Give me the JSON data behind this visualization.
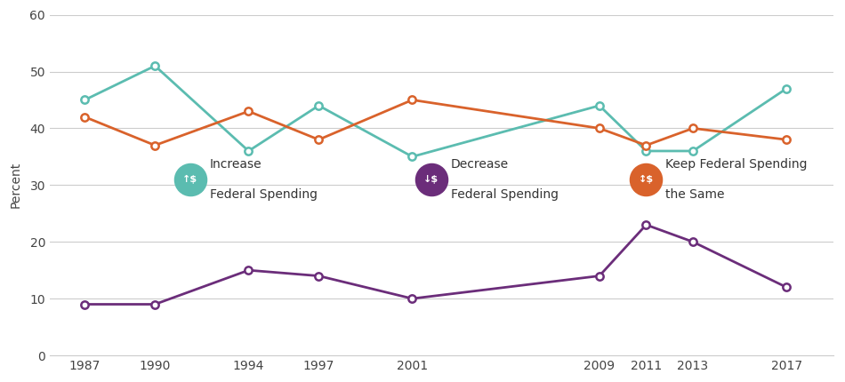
{
  "years": [
    1987,
    1990,
    1994,
    1997,
    2001,
    2009,
    2011,
    2013,
    2017
  ],
  "increase": [
    45,
    51,
    36,
    44,
    35,
    44,
    36,
    36,
    47
  ],
  "keep_same": [
    42,
    37,
    43,
    38,
    45,
    40,
    37,
    40,
    38
  ],
  "decrease": [
    9,
    9,
    15,
    14,
    10,
    14,
    23,
    20,
    12
  ],
  "increase_color": "#5bbcb0",
  "keep_same_color": "#d9622b",
  "decrease_color": "#6b2d7a",
  "background_color": "#ffffff",
  "ylabel": "Percent",
  "ylim": [
    0,
    60
  ],
  "yticks": [
    0,
    10,
    20,
    30,
    40,
    50,
    60
  ],
  "grid_color": "#cccccc",
  "marker_size": 6,
  "line_width": 2.0,
  "legend_increase_text1": "Increase",
  "legend_increase_text2": "Federal Spending",
  "legend_decrease_text1": "Decrease",
  "legend_decrease_text2": "Federal Spending",
  "legend_keep_text1": "Keep Federal Spending",
  "legend_keep_text2": "the Same",
  "xlim_left": 1985.5,
  "xlim_right": 2019.0
}
